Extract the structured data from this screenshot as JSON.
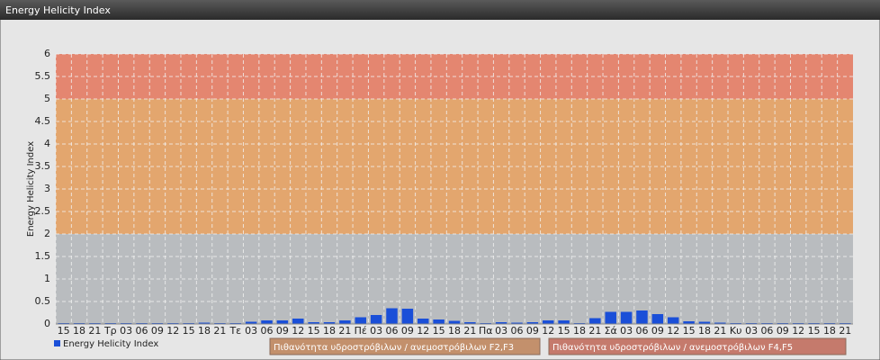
{
  "header": {
    "title": "Energy Helicity Index"
  },
  "chart_data": {
    "type": "bar",
    "y_label": "Energy Helicity Index",
    "categories": [
      "15",
      "18",
      "21",
      "Τρ",
      "03",
      "06",
      "09",
      "12",
      "15",
      "18",
      "21",
      "Τε",
      "03",
      "06",
      "09",
      "12",
      "15",
      "18",
      "21",
      "Πέ",
      "03",
      "06",
      "09",
      "12",
      "15",
      "18",
      "21",
      "Πα",
      "03",
      "06",
      "09",
      "12",
      "15",
      "18",
      "21",
      "Σά",
      "03",
      "06",
      "09",
      "12",
      "15",
      "18",
      "21",
      "Κυ",
      "03",
      "06",
      "09",
      "12",
      "15",
      "18",
      "21"
    ],
    "series": [
      {
        "name": "Energy Helicity Index",
        "color": "#1a4fd8",
        "values": [
          0.02,
          0.02,
          0.02,
          0.02,
          0.02,
          0.02,
          0.02,
          0.02,
          0.02,
          0.03,
          0.02,
          0.02,
          0.05,
          0.08,
          0.08,
          0.12,
          0.04,
          0.04,
          0.08,
          0.15,
          0.2,
          0.35,
          0.34,
          0.12,
          0.1,
          0.07,
          0.04,
          0.02,
          0.04,
          0.03,
          0.04,
          0.08,
          0.08,
          0.02,
          0.13,
          0.27,
          0.27,
          0.3,
          0.22,
          0.15,
          0.06,
          0.05,
          0.03,
          0.02,
          0.02,
          0.02,
          0.02,
          0.02,
          0.02,
          0.02,
          0.02
        ]
      }
    ],
    "bands": [
      {
        "from": 2,
        "to": 5,
        "color": "#e3a66e",
        "legend_color": "#c3906c",
        "name": "Πιθανότητα υδροστρόβιλων / ανεμοστρόβιλων F2,F3"
      },
      {
        "from": 5,
        "to": 6,
        "color": "#e48670",
        "legend_color": "#c57a6c",
        "name": "Πιθανότητα υδροστρόβιλων / ανεμοστρόβιλων F4,F5"
      }
    ],
    "ylim": [
      0,
      6
    ],
    "yticks": [
      0,
      0.5,
      1,
      1.5,
      2,
      2.5,
      3,
      3.5,
      4,
      4.5,
      5,
      5.5,
      6
    ],
    "grid": true
  }
}
